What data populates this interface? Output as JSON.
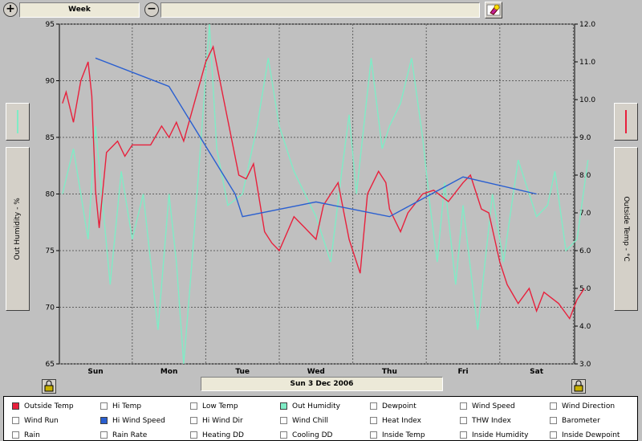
{
  "toolbar": {
    "zoom_in": "+",
    "zoom_out": "−",
    "period": "Week"
  },
  "chart": {
    "date_label": "Sun 3 Dec 2006",
    "left_axis_label": "Out Humidity - %",
    "right_axis_label": "Outside Temp - °C",
    "left_ticks": [
      "95",
      "90",
      "85",
      "80",
      "75",
      "70",
      "65"
    ],
    "right_ticks": [
      "12.0",
      "11.0",
      "10.0",
      "9.0",
      "8.0",
      "7.0",
      "6.0",
      "5.0",
      "4.0",
      "3.0"
    ],
    "days": [
      "Sun",
      "Mon",
      "Tue",
      "Wed",
      "Thu",
      "Fri",
      "Sat"
    ]
  },
  "colors": {
    "humidity": "#7fecc6",
    "temp": "#e8203c",
    "wind": "#2a5fd0",
    "grid": "#606060"
  },
  "legend": [
    {
      "label": "Outside Temp",
      "checked": true,
      "color": "#e8203c"
    },
    {
      "label": "Hi Temp",
      "checked": false
    },
    {
      "label": "Low Temp",
      "checked": false
    },
    {
      "label": "Out Humidity",
      "checked": true,
      "color": "#7fecc6"
    },
    {
      "label": "Dewpoint",
      "checked": false
    },
    {
      "label": "Wind Speed",
      "checked": false
    },
    {
      "label": "Wind Direction",
      "checked": false
    },
    {
      "label": "Wind Run",
      "checked": false
    },
    {
      "label": "Hi Wind Speed",
      "checked": true,
      "color": "#2a5fd0"
    },
    {
      "label": "Hi Wind Dir",
      "checked": false
    },
    {
      "label": "Wind Chill",
      "checked": false
    },
    {
      "label": "Heat Index",
      "checked": false
    },
    {
      "label": "THW Index",
      "checked": false
    },
    {
      "label": "Barometer",
      "checked": false
    },
    {
      "label": "Rain",
      "checked": false
    },
    {
      "label": "Rain Rate",
      "checked": false
    },
    {
      "label": "Heating DD",
      "checked": false
    },
    {
      "label": "Cooling DD",
      "checked": false
    },
    {
      "label": "Inside Temp",
      "checked": false
    },
    {
      "label": "Inside Humidity",
      "checked": false
    },
    {
      "label": "Inside Dewpoint",
      "checked": false
    }
  ],
  "chart_data": {
    "type": "line",
    "x_unit": "days since start of week (Sun=0)",
    "left_ylim": [
      65,
      95
    ],
    "right_ylim": [
      3.0,
      12.0
    ],
    "grid": true,
    "series": [
      {
        "name": "Out Humidity",
        "axis": "left",
        "points": [
          [
            -0.45,
            80
          ],
          [
            -0.3,
            84
          ],
          [
            -0.1,
            76
          ],
          [
            0.0,
            86
          ],
          [
            0.2,
            72
          ],
          [
            0.35,
            82
          ],
          [
            0.5,
            76
          ],
          [
            0.65,
            80
          ],
          [
            0.85,
            68
          ],
          [
            1.0,
            80
          ],
          [
            1.1,
            74
          ],
          [
            1.2,
            64
          ],
          [
            1.3,
            73
          ],
          [
            1.45,
            86
          ],
          [
            1.55,
            95
          ],
          [
            1.65,
            84
          ],
          [
            1.8,
            79
          ],
          [
            2.0,
            80
          ],
          [
            2.2,
            86
          ],
          [
            2.35,
            92
          ],
          [
            2.5,
            86
          ],
          [
            2.7,
            82
          ],
          [
            3.0,
            78
          ],
          [
            3.2,
            74
          ],
          [
            3.35,
            82
          ],
          [
            3.45,
            87
          ],
          [
            3.55,
            80
          ],
          [
            3.75,
            92
          ],
          [
            3.9,
            84
          ],
          [
            4.0,
            86
          ],
          [
            4.15,
            88
          ],
          [
            4.3,
            92
          ],
          [
            4.45,
            85
          ],
          [
            4.55,
            79
          ],
          [
            4.65,
            74
          ],
          [
            4.75,
            81
          ],
          [
            4.9,
            72
          ],
          [
            5.0,
            79
          ],
          [
            5.2,
            68
          ],
          [
            5.4,
            80
          ],
          [
            5.55,
            74
          ],
          [
            5.75,
            83
          ],
          [
            6.0,
            78
          ],
          [
            6.15,
            79
          ],
          [
            6.25,
            82
          ],
          [
            6.4,
            75
          ],
          [
            6.55,
            76
          ],
          [
            6.7,
            83
          ]
        ]
      },
      {
        "name": "Outside Temp",
        "axis": "right",
        "points": [
          [
            -0.45,
            9.9
          ],
          [
            -0.4,
            10.2
          ],
          [
            -0.3,
            9.4
          ],
          [
            -0.2,
            10.5
          ],
          [
            -0.1,
            11.0
          ],
          [
            -0.05,
            10.1
          ],
          [
            0.0,
            7.6
          ],
          [
            0.05,
            6.6
          ],
          [
            0.15,
            8.6
          ],
          [
            0.3,
            8.9
          ],
          [
            0.4,
            8.5
          ],
          [
            0.5,
            8.8
          ],
          [
            0.6,
            8.8
          ],
          [
            0.75,
            8.8
          ],
          [
            0.9,
            9.3
          ],
          [
            1.0,
            9.0
          ],
          [
            1.1,
            9.4
          ],
          [
            1.2,
            8.9
          ],
          [
            1.5,
            11.0
          ],
          [
            1.6,
            11.4
          ],
          [
            1.95,
            8.0
          ],
          [
            2.05,
            7.9
          ],
          [
            2.15,
            8.3
          ],
          [
            2.3,
            6.5
          ],
          [
            2.4,
            6.2
          ],
          [
            2.5,
            6.0
          ],
          [
            2.7,
            6.9
          ],
          [
            2.85,
            6.6
          ],
          [
            3.0,
            6.3
          ],
          [
            3.1,
            7.2
          ],
          [
            3.2,
            7.5
          ],
          [
            3.3,
            7.8
          ],
          [
            3.45,
            6.3
          ],
          [
            3.6,
            5.4
          ],
          [
            3.7,
            7.5
          ],
          [
            3.85,
            8.1
          ],
          [
            3.95,
            7.8
          ],
          [
            4.0,
            7.1
          ],
          [
            4.15,
            6.5
          ],
          [
            4.25,
            7.0
          ],
          [
            4.45,
            7.5
          ],
          [
            4.6,
            7.6
          ],
          [
            4.8,
            7.3
          ],
          [
            5.0,
            7.8
          ],
          [
            5.1,
            8.0
          ],
          [
            5.25,
            7.1
          ],
          [
            5.35,
            7.0
          ],
          [
            5.5,
            5.7
          ],
          [
            5.6,
            5.1
          ],
          [
            5.75,
            4.6
          ],
          [
            5.9,
            5.0
          ],
          [
            6.0,
            4.4
          ],
          [
            6.1,
            4.9
          ],
          [
            6.3,
            4.6
          ],
          [
            6.45,
            4.2
          ],
          [
            6.55,
            4.7
          ],
          [
            6.65,
            5.0
          ]
        ]
      },
      {
        "name": "Hi Wind Speed",
        "axis": "left",
        "points": [
          [
            0.0,
            92
          ],
          [
            1.0,
            89.5
          ],
          [
            1.9,
            80
          ],
          [
            2.0,
            78
          ],
          [
            3.0,
            79.3
          ],
          [
            4.0,
            78
          ],
          [
            5.0,
            81.5
          ],
          [
            6.0,
            80
          ]
        ]
      }
    ]
  }
}
